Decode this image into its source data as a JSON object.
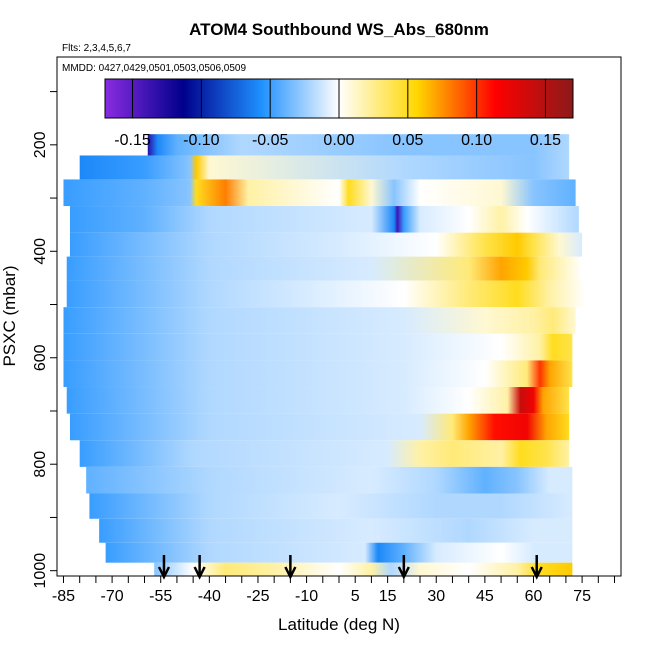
{
  "chart_data": {
    "type": "heatmap",
    "title": "ATOM4 Southbound WS_Abs_680nm",
    "flights_note": "Flts: 2,3,4,5,6,7",
    "dates_note": "MMDD: 0427,0429,0501,0503,0506,0509",
    "xlabel": "Latitude (deg N)",
    "ylabel": "PSXC (mbar)",
    "xlim": [
      -87,
      87
    ],
    "ylim": [
      1010,
      35
    ],
    "x_ticks": [
      -85,
      -70,
      -55,
      -40,
      -25,
      -10,
      5,
      15,
      30,
      45,
      60,
      75
    ],
    "y_ticks": [
      200,
      400,
      600,
      800,
      1000
    ],
    "colorbar": {
      "range": [
        -0.17,
        0.17
      ],
      "ticks": [
        -0.15,
        -0.1,
        -0.05,
        0.0,
        0.05,
        0.1,
        0.15
      ],
      "tick_labels": [
        "-0.15",
        "-0.10",
        "-0.05",
        "0.00",
        "0.05",
        "0.10",
        "0.15"
      ],
      "colors": [
        "#8a2be2",
        "#00008b",
        "#1e90ff",
        "#ffffff",
        "#ffd700",
        "#ff0000",
        "#8b1a1a"
      ]
    },
    "arrow_latitudes": [
      -54,
      -43,
      -15,
      20,
      61
    ],
    "rows": [
      {
        "p": 200,
        "lat_start": -59,
        "lat_end": 71,
        "knots": [
          [
            -59,
            -0.13
          ],
          [
            -56,
            -0.06
          ],
          [
            -50,
            -0.04
          ],
          [
            -30,
            -0.02
          ],
          [
            20,
            -0.03
          ],
          [
            60,
            -0.03
          ],
          [
            71,
            -0.02
          ]
        ]
      },
      {
        "p": 240,
        "lat_start": -80,
        "lat_end": 71,
        "knots": [
          [
            -80,
            -0.06
          ],
          [
            -60,
            -0.05
          ],
          [
            -46,
            -0.03
          ],
          [
            -44,
            0.06
          ],
          [
            -40,
            0.01
          ],
          [
            20,
            -0.02
          ],
          [
            60,
            -0.03
          ],
          [
            71,
            -0.02
          ]
        ]
      },
      {
        "p": 290,
        "lat_start": -85,
        "lat_end": 73,
        "knots": [
          [
            -85,
            -0.05
          ],
          [
            -60,
            -0.04
          ],
          [
            -46,
            -0.03
          ],
          [
            -44,
            0.05
          ],
          [
            -35,
            0.08
          ],
          [
            -28,
            0.02
          ],
          [
            0,
            0.0
          ],
          [
            3,
            0.05
          ],
          [
            10,
            0.01
          ],
          [
            17,
            -0.03
          ],
          [
            25,
            0.0
          ],
          [
            50,
            0.01
          ],
          [
            60,
            -0.03
          ],
          [
            73,
            -0.04
          ]
        ]
      },
      {
        "p": 340,
        "lat_start": -83,
        "lat_end": 74,
        "knots": [
          [
            -83,
            -0.05
          ],
          [
            -60,
            -0.04
          ],
          [
            -40,
            -0.02
          ],
          [
            10,
            -0.01
          ],
          [
            17,
            -0.06
          ],
          [
            18,
            -0.14
          ],
          [
            20,
            -0.05
          ],
          [
            25,
            -0.01
          ],
          [
            40,
            0.0
          ],
          [
            50,
            0.02
          ],
          [
            58,
            0.0
          ],
          [
            74,
            -0.02
          ]
        ]
      },
      {
        "p": 390,
        "lat_start": -83,
        "lat_end": 75,
        "knots": [
          [
            -83,
            -0.05
          ],
          [
            -40,
            -0.02
          ],
          [
            0,
            -0.01
          ],
          [
            30,
            0.0
          ],
          [
            45,
            0.04
          ],
          [
            55,
            0.06
          ],
          [
            60,
            0.04
          ],
          [
            68,
            0.01
          ],
          [
            75,
            -0.01
          ]
        ]
      },
      {
        "p": 430,
        "lat_start": -84,
        "lat_end": 75,
        "knots": [
          [
            -84,
            -0.05
          ],
          [
            -40,
            -0.02
          ],
          [
            10,
            -0.01
          ],
          [
            40,
            0.03
          ],
          [
            50,
            0.07
          ],
          [
            58,
            0.06
          ],
          [
            62,
            0.03
          ],
          [
            75,
            0.0
          ]
        ]
      },
      {
        "p": 480,
        "lat_start": -84,
        "lat_end": 76,
        "knots": [
          [
            -84,
            -0.05
          ],
          [
            -40,
            -0.02
          ],
          [
            20,
            0.0
          ],
          [
            40,
            0.03
          ],
          [
            55,
            0.05
          ],
          [
            65,
            0.02
          ],
          [
            76,
            0.0
          ]
        ]
      },
      {
        "p": 530,
        "lat_start": -85,
        "lat_end": 73,
        "knots": [
          [
            -85,
            -0.05
          ],
          [
            -40,
            -0.02
          ],
          [
            20,
            -0.01
          ],
          [
            45,
            0.01
          ],
          [
            60,
            0.02
          ],
          [
            66,
            0.03
          ],
          [
            73,
            0.01
          ]
        ]
      },
      {
        "p": 580,
        "lat_start": -85,
        "lat_end": 72,
        "knots": [
          [
            -85,
            -0.05
          ],
          [
            -40,
            -0.02
          ],
          [
            20,
            -0.01
          ],
          [
            50,
            0.0
          ],
          [
            62,
            0.02
          ],
          [
            66,
            0.05
          ],
          [
            72,
            0.04
          ]
        ]
      },
      {
        "p": 630,
        "lat_start": -85,
        "lat_end": 72,
        "knots": [
          [
            -85,
            -0.05
          ],
          [
            -40,
            -0.02
          ],
          [
            20,
            -0.01
          ],
          [
            45,
            0.0
          ],
          [
            58,
            0.03
          ],
          [
            62,
            0.1
          ],
          [
            65,
            0.07
          ],
          [
            72,
            0.04
          ]
        ]
      },
      {
        "p": 680,
        "lat_start": -84,
        "lat_end": 71,
        "knots": [
          [
            -84,
            -0.05
          ],
          [
            -40,
            -0.02
          ],
          [
            20,
            -0.01
          ],
          [
            40,
            0.0
          ],
          [
            52,
            0.02
          ],
          [
            56,
            0.14
          ],
          [
            60,
            0.12
          ],
          [
            63,
            0.07
          ],
          [
            71,
            0.04
          ]
        ]
      },
      {
        "p": 730,
        "lat_start": -83,
        "lat_end": 71,
        "knots": [
          [
            -83,
            -0.05
          ],
          [
            -40,
            -0.02
          ],
          [
            25,
            -0.01
          ],
          [
            35,
            0.03
          ],
          [
            40,
            0.07
          ],
          [
            48,
            0.11
          ],
          [
            58,
            0.12
          ],
          [
            64,
            0.07
          ],
          [
            71,
            0.05
          ]
        ]
      },
      {
        "p": 780,
        "lat_start": -80,
        "lat_end": 71,
        "knots": [
          [
            -80,
            -0.05
          ],
          [
            -45,
            -0.02
          ],
          [
            15,
            -0.01
          ],
          [
            25,
            0.02
          ],
          [
            35,
            0.03
          ],
          [
            50,
            0.02
          ],
          [
            56,
            0.05
          ],
          [
            64,
            0.04
          ],
          [
            71,
            0.02
          ]
        ]
      },
      {
        "p": 830,
        "lat_start": -78,
        "lat_end": 72,
        "knots": [
          [
            -78,
            -0.04
          ],
          [
            -40,
            -0.02
          ],
          [
            10,
            -0.01
          ],
          [
            30,
            -0.02
          ],
          [
            45,
            -0.04
          ],
          [
            55,
            -0.03
          ],
          [
            65,
            -0.01
          ],
          [
            72,
            -0.01
          ]
        ]
      },
      {
        "p": 880,
        "lat_start": -77,
        "lat_end": 72,
        "knots": [
          [
            -77,
            -0.05
          ],
          [
            -40,
            -0.02
          ],
          [
            0,
            -0.01
          ],
          [
            30,
            -0.02
          ],
          [
            50,
            -0.02
          ],
          [
            72,
            -0.01
          ]
        ]
      },
      {
        "p": 925,
        "lat_start": -74,
        "lat_end": 72,
        "knots": [
          [
            -74,
            -0.05
          ],
          [
            -40,
            -0.02
          ],
          [
            10,
            -0.01
          ],
          [
            40,
            -0.02
          ],
          [
            60,
            -0.01
          ],
          [
            72,
            -0.01
          ]
        ]
      },
      {
        "p": 970,
        "lat_start": -72,
        "lat_end": 72,
        "knots": [
          [
            -72,
            -0.05
          ],
          [
            -40,
            -0.02
          ],
          [
            8,
            -0.01
          ],
          [
            12,
            -0.06
          ],
          [
            20,
            -0.04
          ],
          [
            30,
            -0.01
          ],
          [
            50,
            0.0
          ],
          [
            60,
            -0.01
          ],
          [
            72,
            -0.01
          ]
        ]
      },
      {
        "p": 1000,
        "lat_start": -57,
        "lat_end": 72,
        "knots": [
          [
            -57,
            -0.03
          ],
          [
            -45,
            0.0
          ],
          [
            -35,
            0.03
          ],
          [
            -20,
            0.02
          ],
          [
            0,
            0.0
          ],
          [
            10,
            0.02
          ],
          [
            16,
            -0.02
          ],
          [
            25,
            0.01
          ],
          [
            40,
            0.0
          ],
          [
            55,
            0.02
          ],
          [
            62,
            0.05
          ],
          [
            72,
            0.06
          ]
        ]
      }
    ]
  }
}
